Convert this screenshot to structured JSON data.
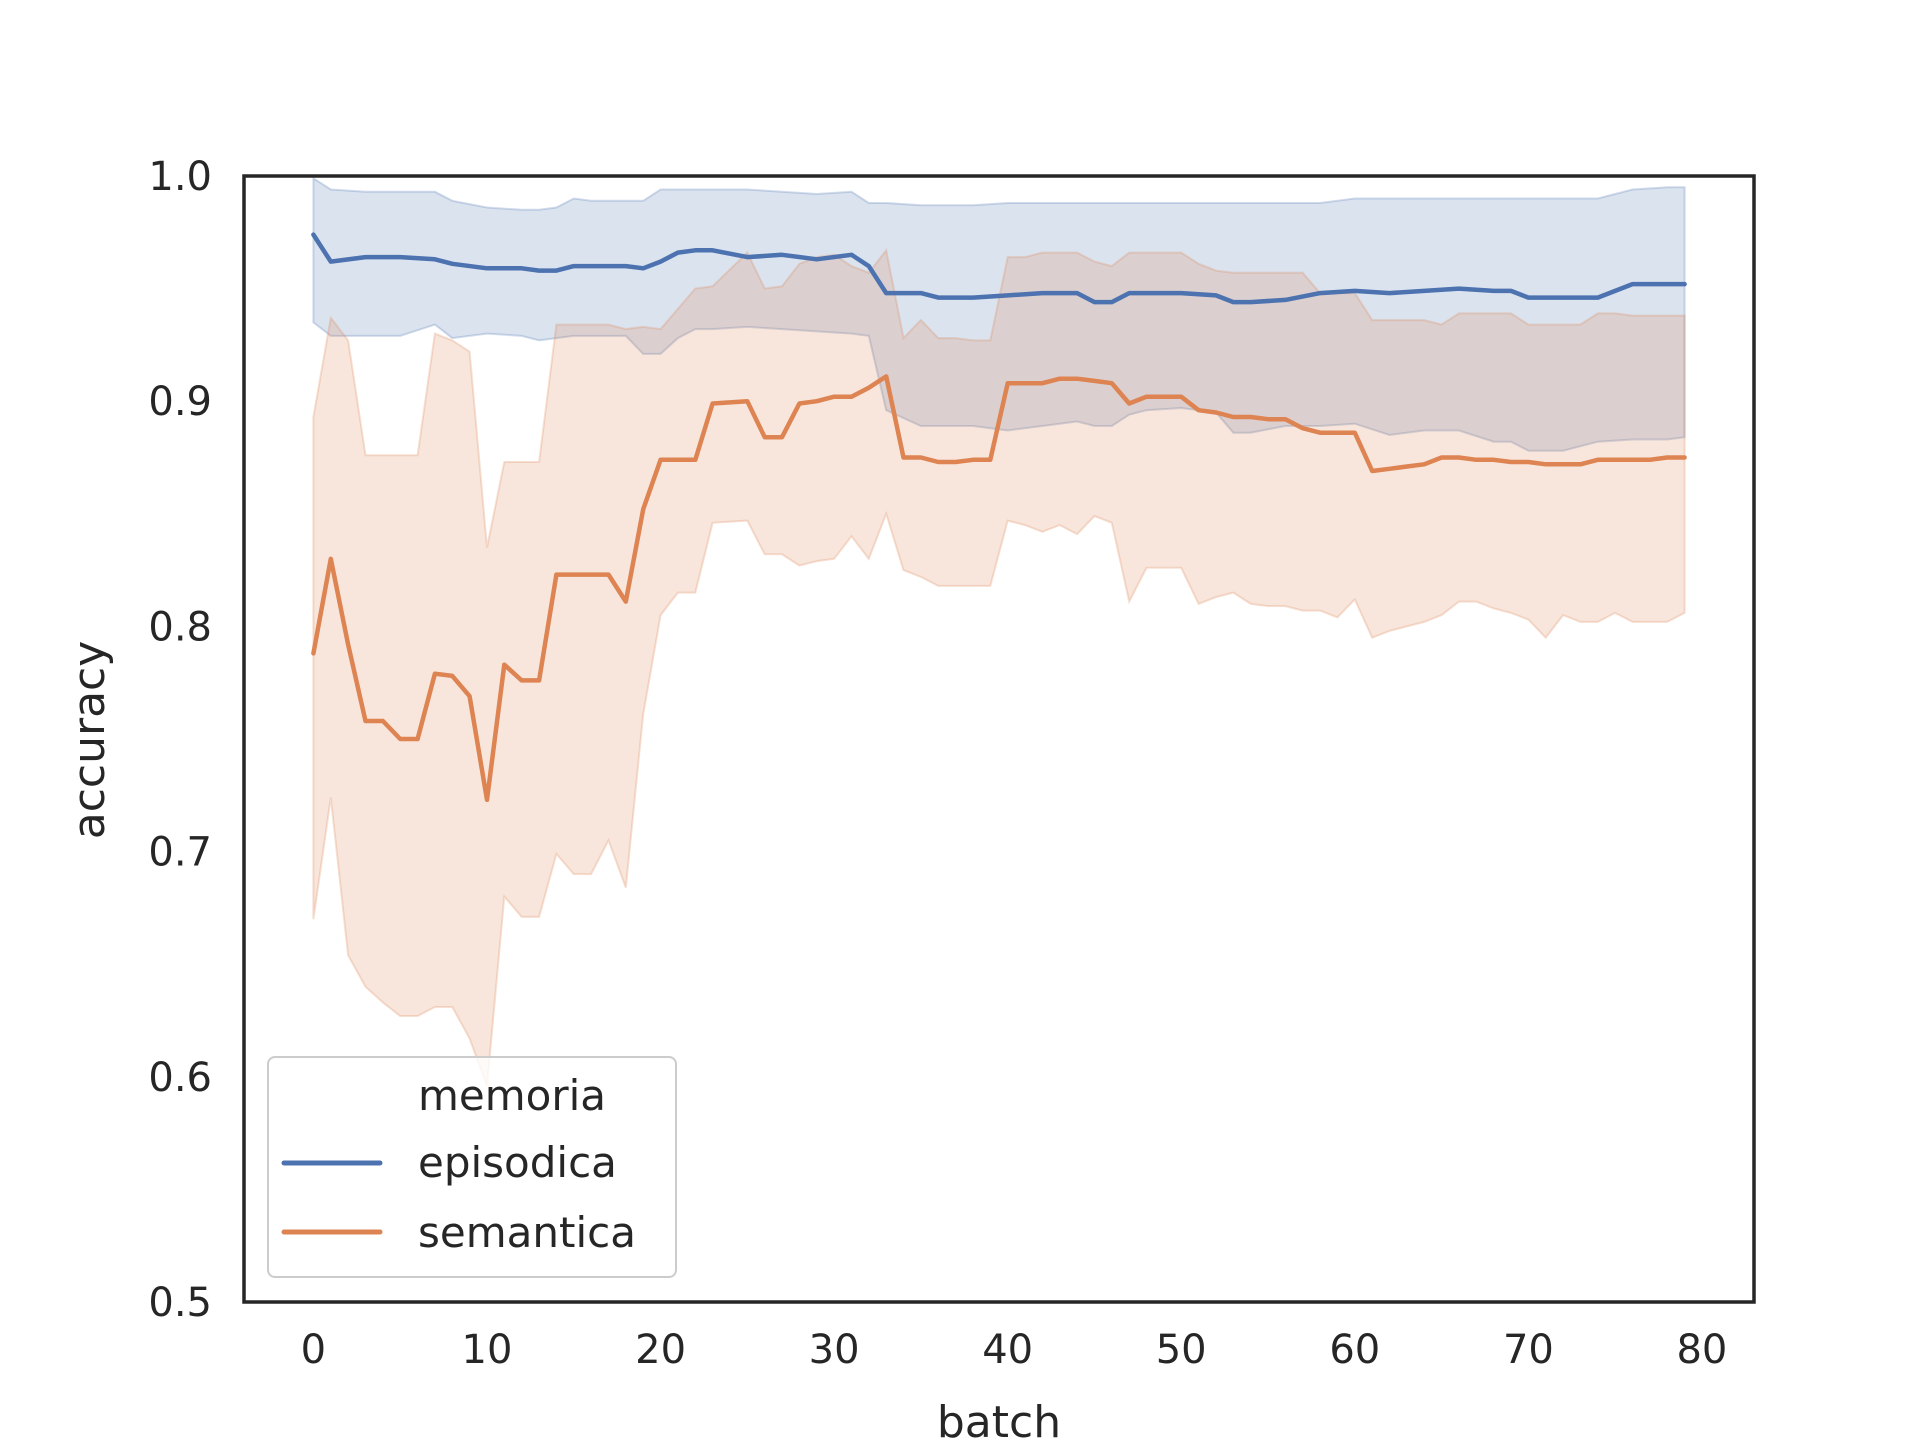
{
  "chart_data": {
    "type": "line",
    "xlabel": "batch",
    "ylabel": "accuracy",
    "xlim": [
      -4,
      83
    ],
    "ylim": [
      0.5,
      1.0
    ],
    "xticks": [
      0,
      10,
      20,
      30,
      40,
      50,
      60,
      70,
      80
    ],
    "yticks": [
      0.5,
      0.6,
      0.7,
      0.8,
      0.9,
      1.0
    ],
    "xtick_labels": [
      "0",
      "10",
      "20",
      "30",
      "40",
      "50",
      "60",
      "70",
      "80"
    ],
    "ytick_labels": [
      "0.5",
      "0.6",
      "0.7",
      "0.8",
      "0.9",
      "1.0"
    ],
    "grid": false,
    "legend": {
      "title": "memoria",
      "placement": "lower-left"
    },
    "series": [
      {
        "name": "episodica",
        "color": "#4c72b0",
        "x": [
          0,
          1,
          3,
          5,
          7,
          8,
          10,
          12,
          13,
          14,
          15,
          16,
          18,
          19,
          20,
          21,
          22,
          23,
          25,
          27,
          29,
          31,
          32,
          33,
          35,
          36,
          38,
          40,
          42,
          44,
          45,
          46,
          47,
          48,
          50,
          52,
          53,
          54,
          56,
          58,
          60,
          62,
          64,
          66,
          68,
          69,
          70,
          72,
          74,
          76,
          78,
          79
        ],
        "y": [
          0.974,
          0.962,
          0.964,
          0.964,
          0.963,
          0.961,
          0.959,
          0.959,
          0.958,
          0.958,
          0.96,
          0.96,
          0.96,
          0.959,
          0.962,
          0.966,
          0.967,
          0.967,
          0.964,
          0.965,
          0.963,
          0.965,
          0.96,
          0.948,
          0.948,
          0.946,
          0.946,
          0.947,
          0.948,
          0.948,
          0.944,
          0.944,
          0.948,
          0.948,
          0.948,
          0.947,
          0.944,
          0.944,
          0.945,
          0.948,
          0.949,
          0.948,
          0.949,
          0.95,
          0.949,
          0.949,
          0.946,
          0.946,
          0.946,
          0.952,
          0.952,
          0.952
        ],
        "upper": [
          0.999,
          0.994,
          0.993,
          0.993,
          0.993,
          0.989,
          0.986,
          0.985,
          0.985,
          0.986,
          0.99,
          0.989,
          0.989,
          0.989,
          0.994,
          0.994,
          0.994,
          0.994,
          0.994,
          0.993,
          0.992,
          0.993,
          0.988,
          0.988,
          0.987,
          0.987,
          0.987,
          0.988,
          0.988,
          0.988,
          0.988,
          0.988,
          0.988,
          0.988,
          0.988,
          0.988,
          0.988,
          0.988,
          0.988,
          0.988,
          0.99,
          0.99,
          0.99,
          0.99,
          0.99,
          0.99,
          0.99,
          0.99,
          0.99,
          0.994,
          0.995,
          0.995
        ],
        "lower": [
          0.935,
          0.929,
          0.929,
          0.929,
          0.934,
          0.928,
          0.93,
          0.929,
          0.927,
          0.928,
          0.929,
          0.929,
          0.929,
          0.921,
          0.921,
          0.928,
          0.932,
          0.932,
          0.933,
          0.932,
          0.931,
          0.93,
          0.929,
          0.896,
          0.889,
          0.889,
          0.889,
          0.887,
          0.889,
          0.891,
          0.889,
          0.889,
          0.894,
          0.896,
          0.897,
          0.895,
          0.886,
          0.886,
          0.889,
          0.889,
          0.89,
          0.885,
          0.887,
          0.887,
          0.882,
          0.882,
          0.878,
          0.878,
          0.882,
          0.883,
          0.883,
          0.884
        ]
      },
      {
        "name": "semantica",
        "color": "#dd8452",
        "x": [
          0,
          1,
          2,
          3,
          4,
          5,
          6,
          7,
          8,
          9,
          10,
          11,
          12,
          13,
          14,
          15,
          16,
          17,
          18,
          19,
          20,
          21,
          22,
          23,
          25,
          26,
          27,
          28,
          29,
          30,
          31,
          32,
          33,
          34,
          35,
          36,
          37,
          38,
          39,
          40,
          41,
          42,
          43,
          44,
          45,
          46,
          47,
          48,
          49,
          50,
          51,
          52,
          53,
          54,
          55,
          56,
          57,
          58,
          59,
          60,
          61,
          62,
          63,
          64,
          65,
          66,
          67,
          68,
          69,
          70,
          71,
          72,
          73,
          74,
          75,
          76,
          77,
          78,
          79
        ],
        "y": [
          0.788,
          0.83,
          0.792,
          0.758,
          0.758,
          0.75,
          0.75,
          0.779,
          0.778,
          0.769,
          0.723,
          0.783,
          0.776,
          0.776,
          0.823,
          0.823,
          0.823,
          0.823,
          0.811,
          0.852,
          0.874,
          0.874,
          0.874,
          0.899,
          0.9,
          0.884,
          0.884,
          0.899,
          0.9,
          0.902,
          0.902,
          0.906,
          0.911,
          0.875,
          0.875,
          0.873,
          0.873,
          0.874,
          0.874,
          0.908,
          0.908,
          0.908,
          0.91,
          0.91,
          0.909,
          0.908,
          0.899,
          0.902,
          0.902,
          0.902,
          0.896,
          0.895,
          0.893,
          0.893,
          0.892,
          0.892,
          0.888,
          0.886,
          0.886,
          0.886,
          0.869,
          0.87,
          0.871,
          0.872,
          0.875,
          0.875,
          0.874,
          0.874,
          0.873,
          0.873,
          0.872,
          0.872,
          0.872,
          0.874,
          0.874,
          0.874,
          0.874,
          0.875,
          0.875
        ],
        "upper": [
          0.893,
          0.937,
          0.927,
          0.876,
          0.876,
          0.876,
          0.876,
          0.93,
          0.927,
          0.922,
          0.835,
          0.873,
          0.873,
          0.873,
          0.934,
          0.934,
          0.934,
          0.934,
          0.932,
          0.933,
          0.932,
          0.941,
          0.95,
          0.951,
          0.966,
          0.95,
          0.951,
          0.961,
          0.964,
          0.965,
          0.96,
          0.957,
          0.967,
          0.928,
          0.936,
          0.928,
          0.928,
          0.927,
          0.927,
          0.964,
          0.964,
          0.966,
          0.966,
          0.966,
          0.962,
          0.96,
          0.966,
          0.966,
          0.966,
          0.966,
          0.961,
          0.958,
          0.957,
          0.957,
          0.957,
          0.957,
          0.957,
          0.948,
          0.948,
          0.948,
          0.936,
          0.936,
          0.936,
          0.936,
          0.934,
          0.939,
          0.939,
          0.939,
          0.939,
          0.934,
          0.934,
          0.934,
          0.934,
          0.939,
          0.939,
          0.938,
          0.938,
          0.938,
          0.938
        ],
        "lower": [
          0.67,
          0.724,
          0.654,
          0.64,
          0.633,
          0.627,
          0.627,
          0.631,
          0.631,
          0.617,
          0.596,
          0.68,
          0.671,
          0.671,
          0.699,
          0.69,
          0.69,
          0.705,
          0.684,
          0.761,
          0.805,
          0.815,
          0.815,
          0.846,
          0.847,
          0.832,
          0.832,
          0.827,
          0.829,
          0.83,
          0.84,
          0.83,
          0.85,
          0.825,
          0.822,
          0.818,
          0.818,
          0.818,
          0.818,
          0.847,
          0.845,
          0.842,
          0.845,
          0.841,
          0.849,
          0.846,
          0.811,
          0.826,
          0.826,
          0.826,
          0.81,
          0.813,
          0.815,
          0.81,
          0.809,
          0.809,
          0.807,
          0.807,
          0.804,
          0.812,
          0.795,
          0.798,
          0.8,
          0.802,
          0.805,
          0.811,
          0.811,
          0.808,
          0.806,
          0.803,
          0.795,
          0.805,
          0.802,
          0.802,
          0.806,
          0.802,
          0.802,
          0.802,
          0.806
        ]
      }
    ]
  }
}
